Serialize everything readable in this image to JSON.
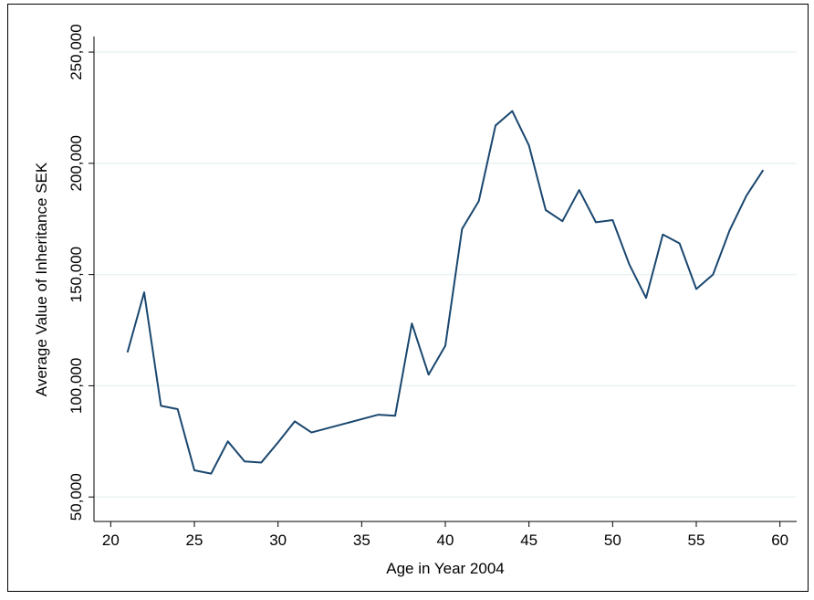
{
  "chart_data": {
    "type": "line",
    "xlabel": "Age in Year 2004",
    "ylabel": "Average Value of Inheritance SEK",
    "x": [
      21,
      22,
      23,
      24,
      25,
      26,
      27,
      28,
      29,
      30,
      31,
      32,
      33,
      34,
      35,
      36,
      37,
      38,
      39,
      40,
      41,
      42,
      43,
      44,
      45,
      46,
      47,
      48,
      49,
      50,
      51,
      52,
      53,
      54,
      55,
      56,
      57,
      58,
      59
    ],
    "series": [
      {
        "color": "#1a476f",
        "values": [
          115000,
          142000,
          91000,
          89500,
          62000,
          60500,
          75000,
          66000,
          65500,
          74500,
          84000,
          79000,
          81000,
          83000,
          85000,
          87000,
          86500,
          128000,
          105000,
          118000,
          170500,
          183000,
          217000,
          223500,
          208000,
          179000,
          174000,
          188000,
          173500,
          174500,
          154500,
          139500,
          168000,
          164000,
          143500,
          150000,
          170000,
          185500,
          197000
        ]
      }
    ],
    "xlim": [
      19,
      61
    ],
    "xticks": [
      20,
      25,
      30,
      35,
      40,
      45,
      50,
      55,
      60
    ],
    "ylim": [
      39000,
      257000
    ],
    "yticks": [
      {
        "value": 50000,
        "label": "50,000"
      },
      {
        "value": 100000,
        "label": "100,000"
      },
      {
        "value": 150000,
        "label": "150,000"
      },
      {
        "value": 200000,
        "label": "200,000"
      },
      {
        "value": 250000,
        "label": "250,000"
      }
    ],
    "grid": true
  }
}
